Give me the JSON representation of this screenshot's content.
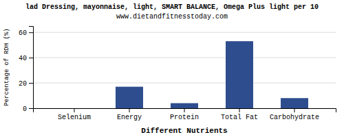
{
  "chart_data": {
    "type": "bar",
    "title": "lad Dressing, mayonnaise, light, SMART BALANCE, Omega Plus light per 10",
    "subtitle": "www.dietandfitnesstoday.com",
    "xlabel": "Different Nutrients",
    "ylabel": "Percentage of RDH (%)",
    "categories": [
      "Selenium",
      "Energy",
      "Protein",
      "Total Fat",
      "Carbohydrate"
    ],
    "values": [
      0.0,
      17.0,
      4.0,
      53.0,
      8.0
    ],
    "color": "#2e4d8e",
    "ylim": [
      0,
      65
    ],
    "yticks": [
      0,
      20,
      40,
      60
    ],
    "grid": true
  }
}
